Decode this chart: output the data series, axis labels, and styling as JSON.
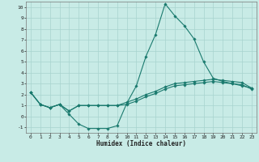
{
  "title": "",
  "xlabel": "Humidex (Indice chaleur)",
  "xlim": [
    -0.5,
    23.5
  ],
  "ylim": [
    -1.5,
    10.5
  ],
  "yticks": [
    -1,
    0,
    1,
    2,
    3,
    4,
    5,
    6,
    7,
    8,
    9,
    10
  ],
  "xticks": [
    0,
    1,
    2,
    3,
    4,
    5,
    6,
    7,
    8,
    9,
    10,
    11,
    12,
    13,
    14,
    15,
    16,
    17,
    18,
    19,
    20,
    21,
    22,
    23
  ],
  "background_color": "#c8ebe6",
  "grid_color": "#a8d4cf",
  "line_color": "#1a7a6e",
  "line1_x": [
    0,
    1,
    2,
    3,
    4,
    5,
    6,
    7,
    8,
    9,
    10,
    11,
    12,
    13,
    14,
    15,
    16,
    17,
    18,
    19,
    20,
    21,
    22,
    23
  ],
  "line1_y": [
    2.2,
    1.1,
    0.8,
    1.1,
    0.2,
    -0.7,
    -1.1,
    -1.1,
    -1.1,
    -0.85,
    1.2,
    2.8,
    5.5,
    7.5,
    10.3,
    9.2,
    8.3,
    7.1,
    5.0,
    3.5,
    3.2,
    3.0,
    2.8,
    2.6
  ],
  "line2_x": [
    0,
    1,
    2,
    3,
    4,
    5,
    6,
    7,
    8,
    9,
    10,
    11,
    12,
    13,
    14,
    15,
    16,
    17,
    18,
    19,
    20,
    21,
    22,
    23
  ],
  "line2_y": [
    2.2,
    1.1,
    0.8,
    1.1,
    0.5,
    1.0,
    1.0,
    1.0,
    1.0,
    1.0,
    1.3,
    1.6,
    2.0,
    2.3,
    2.7,
    3.0,
    3.1,
    3.2,
    3.3,
    3.4,
    3.3,
    3.2,
    3.1,
    2.6
  ],
  "line3_x": [
    0,
    1,
    2,
    3,
    4,
    5,
    6,
    7,
    8,
    9,
    10,
    11,
    12,
    13,
    14,
    15,
    16,
    17,
    18,
    19,
    20,
    21,
    22,
    23
  ],
  "line3_y": [
    2.2,
    1.1,
    0.8,
    1.1,
    0.5,
    1.0,
    1.0,
    1.0,
    1.0,
    1.0,
    1.1,
    1.4,
    1.8,
    2.1,
    2.5,
    2.8,
    2.9,
    3.0,
    3.1,
    3.2,
    3.1,
    3.0,
    2.9,
    2.5
  ]
}
